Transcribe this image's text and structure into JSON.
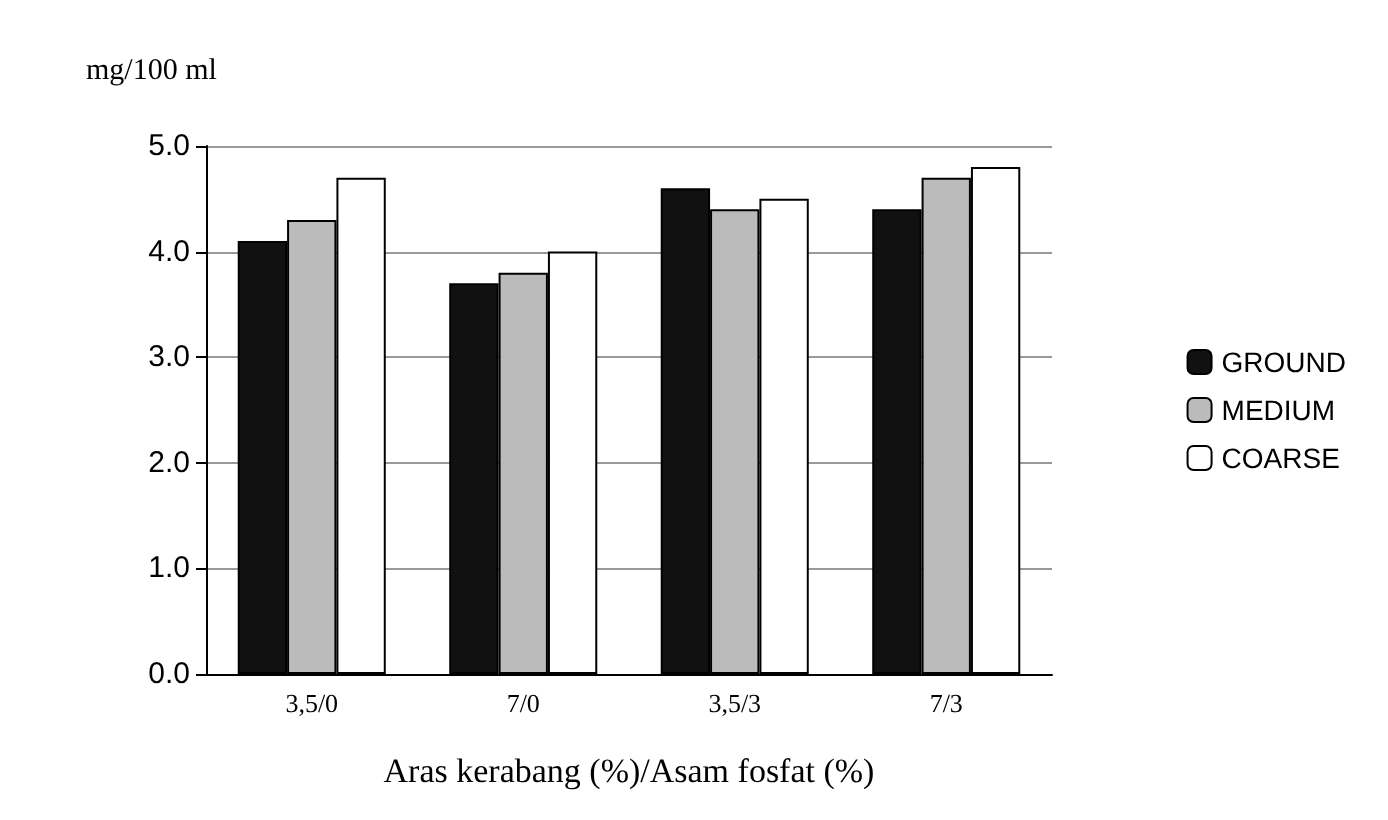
{
  "chart_data": {
    "type": "bar",
    "ylabel": "mg/100 ml",
    "xlabel": "Aras kerabang (%)/Asam fosfat (%)",
    "categories": [
      "3,5/0",
      "7/0",
      "3,5/3",
      "7/3"
    ],
    "series": [
      {
        "name": "GROUND",
        "color": "#111111",
        "values": [
          4.1,
          3.7,
          4.6,
          4.4
        ]
      },
      {
        "name": "MEDIUM",
        "color": "#bbbbbb",
        "values": [
          4.3,
          3.8,
          4.4,
          4.7
        ]
      },
      {
        "name": "COARSE",
        "color": "#ffffff",
        "values": [
          4.7,
          4.0,
          4.5,
          4.8
        ]
      }
    ],
    "ylim": [
      0,
      5
    ],
    "yticks": [
      {
        "value": 0,
        "label": "0.0"
      },
      {
        "value": 1,
        "label": "1.0"
      },
      {
        "value": 2,
        "label": "2.0"
      },
      {
        "value": 3,
        "label": "3.0"
      },
      {
        "value": 4,
        "label": "4.0"
      },
      {
        "value": 5,
        "label": "5.0"
      }
    ],
    "grid": "y",
    "legend": "right"
  }
}
